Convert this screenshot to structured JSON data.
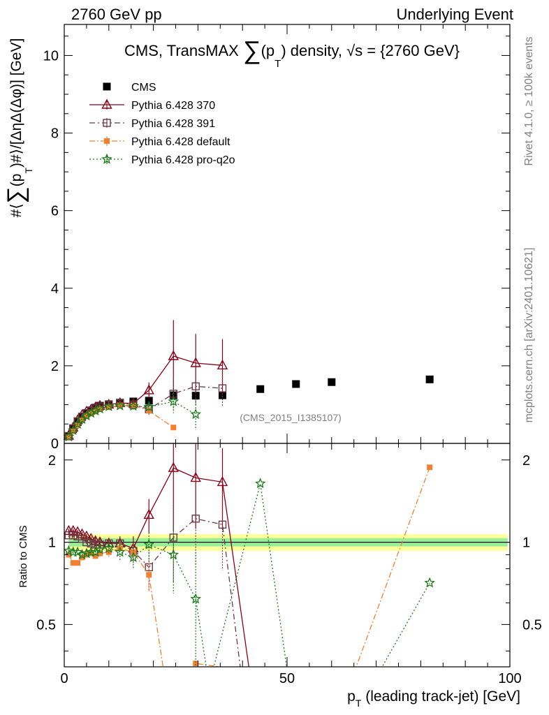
{
  "header": {
    "left": "2760 GeV pp",
    "right": "Underlying Event"
  },
  "side_text": {
    "rivet": "Rivet 4.1.0, ≥ 100k events",
    "site": "mcplots.cern.ch [arXiv:2401.10621]"
  },
  "chart_data": [
    {
      "type": "scatter",
      "panel": "main",
      "title_prefix": "CMS, TransMAX ",
      "title_sum": "∑",
      "title_pt": "(p",
      "title_sub": "T",
      "title_suffix": ") density, √s = {2760 GeV}",
      "ylabel_a": "#⟨",
      "ylabel_sum": "∑",
      "ylabel_b": "(p",
      "ylabel_sub": "T",
      "ylabel_c": ")#⟩/[ΔηΔ(Δφ)] [GeV]",
      "analysis": "(CMS_2015_I1385107)",
      "xlim": [
        0,
        100
      ],
      "ylim": [
        0,
        10.8
      ],
      "yticks": [
        0,
        2,
        4,
        6,
        8,
        10
      ],
      "ytick_labels": [
        "0",
        "2",
        "4",
        "6",
        "8",
        "10"
      ],
      "legend_position": "top-left",
      "series": [
        {
          "name": "CMS",
          "style": "data",
          "color": "#000000",
          "marker": "square-filled",
          "x": [
            1,
            2,
            3,
            4,
            5,
            6,
            7,
            8,
            10,
            12.5,
            15.5,
            19,
            24.5,
            29.5,
            35.5,
            44,
            52,
            60,
            82
          ],
          "y": [
            0.18,
            0.37,
            0.55,
            0.68,
            0.78,
            0.85,
            0.92,
            0.97,
            1.01,
            1.05,
            1.08,
            1.1,
            1.24,
            1.23,
            1.24,
            1.4,
            1.53,
            1.58,
            1.65
          ],
          "yerr": [
            0,
            0,
            0,
            0,
            0,
            0,
            0,
            0,
            0,
            0,
            0,
            0,
            0,
            0,
            0,
            0,
            0,
            0,
            0
          ]
        },
        {
          "name": "Pythia 6.428 370",
          "style": "line",
          "color": "#8b0016",
          "dash": "",
          "marker": "triangle-open",
          "x": [
            1,
            2,
            3,
            4,
            5,
            6,
            7,
            8,
            10,
            12.5,
            15.5,
            19,
            24.5,
            29.5,
            35.5
          ],
          "y": [
            0.2,
            0.41,
            0.6,
            0.73,
            0.82,
            0.87,
            0.93,
            0.97,
            1.0,
            1.04,
            1.03,
            1.37,
            2.25,
            2.07,
            2.01
          ],
          "yerr": [
            0.02,
            0.03,
            0.03,
            0.03,
            0.03,
            0.03,
            0.04,
            0.04,
            0.05,
            0.07,
            0.12,
            0.2,
            0.93,
            0.75,
            0.68
          ]
        },
        {
          "name": "Pythia 6.428 391",
          "style": "line",
          "color": "#6b3a47",
          "dash": "8,4,2,4",
          "marker": "square-open",
          "x": [
            1,
            2,
            3,
            4,
            5,
            6,
            7,
            8,
            10,
            12.5,
            15.5,
            19,
            24.5,
            29.5,
            35.5
          ],
          "y": [
            0.19,
            0.39,
            0.57,
            0.69,
            0.78,
            0.84,
            0.9,
            0.95,
            1.0,
            1.04,
            1.0,
            0.88,
            1.28,
            1.47,
            1.42
          ],
          "yerr": [
            0.02,
            0.02,
            0.03,
            0.03,
            0.03,
            0.03,
            0.03,
            0.04,
            0.05,
            0.07,
            0.1,
            0.18,
            0.4,
            0.5,
            0.45
          ]
        },
        {
          "name": "Pythia 6.428 default",
          "style": "line",
          "color": "#f28030",
          "dash": "8,3,2,3",
          "marker": "square-filled-small",
          "x": [
            1,
            2,
            3,
            4,
            5,
            6,
            7,
            8,
            10,
            12.5,
            15.5,
            19,
            24.5
          ],
          "y": [
            0.16,
            0.31,
            0.46,
            0.6,
            0.7,
            0.77,
            0.82,
            0.88,
            0.93,
            0.98,
            0.98,
            0.84,
            0.41
          ],
          "yerr": [
            0.01,
            0.02,
            0.02,
            0.02,
            0.02,
            0.03,
            0.03,
            0.03,
            0.04,
            0.05,
            0.07,
            0.1,
            0.06
          ]
        },
        {
          "name": "Pythia 6.428 pro-q2o",
          "style": "line",
          "color": "#1a7a1a",
          "dash": "2,3",
          "marker": "star-open",
          "x": [
            1,
            2,
            3,
            4,
            5,
            6,
            7,
            8,
            10,
            12.5,
            15.5,
            19,
            24.5,
            29.5
          ],
          "y": [
            0.17,
            0.34,
            0.5,
            0.62,
            0.71,
            0.78,
            0.84,
            0.89,
            0.95,
            0.97,
            0.96,
            0.94,
            1.08,
            0.75
          ],
          "yerr": [
            0.01,
            0.02,
            0.02,
            0.02,
            0.02,
            0.03,
            0.03,
            0.03,
            0.04,
            0.06,
            0.09,
            0.15,
            0.3,
            0.4
          ]
        }
      ]
    },
    {
      "type": "line",
      "panel": "ratio",
      "ylabel": "Ratio to CMS",
      "xlabel_pt": "p",
      "xlabel_sub": "T",
      "xlabel_rest": " (leading track-jet) [GeV]",
      "xlim": [
        0,
        100
      ],
      "ylim": [
        0.35,
        2.3
      ],
      "yscale": "log",
      "xticks": [
        0,
        50,
        100
      ],
      "xtick_labels": [
        "0",
        "50",
        "100"
      ],
      "yticks": [
        0.5,
        1,
        2
      ],
      "ytick_labels": [
        "0.5",
        "1",
        "2"
      ],
      "band_inner_half_width": 0.035,
      "band_outer_half_width": 0.07,
      "series": [
        {
          "name": "Pythia 6.428 370",
          "color": "#8b0016",
          "dash": "",
          "marker": "triangle-open",
          "x": [
            1,
            2,
            3,
            4,
            5,
            6,
            7,
            8,
            10,
            12.5,
            15.5,
            19,
            24.5,
            29.5,
            35.5,
            42
          ],
          "y": [
            1.1,
            1.1,
            1.09,
            1.07,
            1.05,
            1.03,
            1.01,
            1.0,
            0.99,
            0.99,
            0.95,
            1.26,
            1.87,
            1.72,
            1.66,
            0.3
          ],
          "yerr": [
            0.02,
            0.02,
            0.02,
            0.02,
            0.02,
            0.02,
            0.03,
            0.03,
            0.04,
            0.06,
            0.1,
            0.18,
            0.77,
            0.6,
            0.55,
            0
          ]
        },
        {
          "name": "Pythia 6.428 391",
          "color": "#6b3a47",
          "dash": "8,4,2,4",
          "marker": "square-open",
          "x": [
            1,
            2,
            3,
            4,
            5,
            6,
            7,
            8,
            10,
            12.5,
            15.5,
            19,
            24.5,
            29.5,
            35.5,
            40
          ],
          "y": [
            1.06,
            1.06,
            1.05,
            1.03,
            1.0,
            0.99,
            0.98,
            0.98,
            0.99,
            0.99,
            0.93,
            0.81,
            1.04,
            1.22,
            1.16,
            0.3
          ],
          "yerr": [
            0.02,
            0.02,
            0.02,
            0.02,
            0.02,
            0.02,
            0.03,
            0.03,
            0.04,
            0.06,
            0.09,
            0.15,
            0.33,
            0.4,
            0.37,
            0
          ]
        },
        {
          "name": "Pythia 6.428 default",
          "color": "#f28030",
          "dash": "8,3,2,3",
          "marker": "square-filled-small",
          "x": [
            1,
            2,
            3,
            4,
            5,
            6,
            7,
            8,
            10,
            12.5,
            15.5,
            19,
            22.8,
            29.5,
            29.5,
            64,
            82
          ],
          "y": [
            0.9,
            0.84,
            0.84,
            0.88,
            0.9,
            0.91,
            0.89,
            0.91,
            0.92,
            0.95,
            0.92,
            0.76,
            0.3,
            0.3,
            0.36,
            0.3,
            1.88
          ],
          "yerr": [
            0.02,
            0.02,
            0.02,
            0.02,
            0.02,
            0.02,
            0.02,
            0.03,
            0.04,
            0.05,
            0.07,
            0.1,
            0,
            0,
            0,
            0,
            0
          ]
        },
        {
          "name": "Pythia 6.428 pro-q2o",
          "color": "#1a7a1a",
          "dash": "2,3",
          "marker": "star-open",
          "x": [
            1,
            2,
            3,
            4,
            5,
            6,
            7,
            8,
            10,
            12.5,
            15.5,
            19,
            24.5,
            29.5,
            32.5,
            44,
            50.5,
            69,
            82
          ],
          "y": [
            0.93,
            0.92,
            0.92,
            0.9,
            0.91,
            0.92,
            0.92,
            0.94,
            0.95,
            0.92,
            0.88,
            0.98,
            0.9,
            0.62,
            0.3,
            1.64,
            0.3,
            0.3,
            0.71
          ],
          "yerr": [
            0.02,
            0.02,
            0.02,
            0.02,
            0.02,
            0.02,
            0.03,
            0.03,
            0.04,
            0.06,
            0.08,
            0.13,
            0.25,
            0.3,
            0,
            0,
            0,
            0,
            0
          ]
        }
      ]
    }
  ]
}
